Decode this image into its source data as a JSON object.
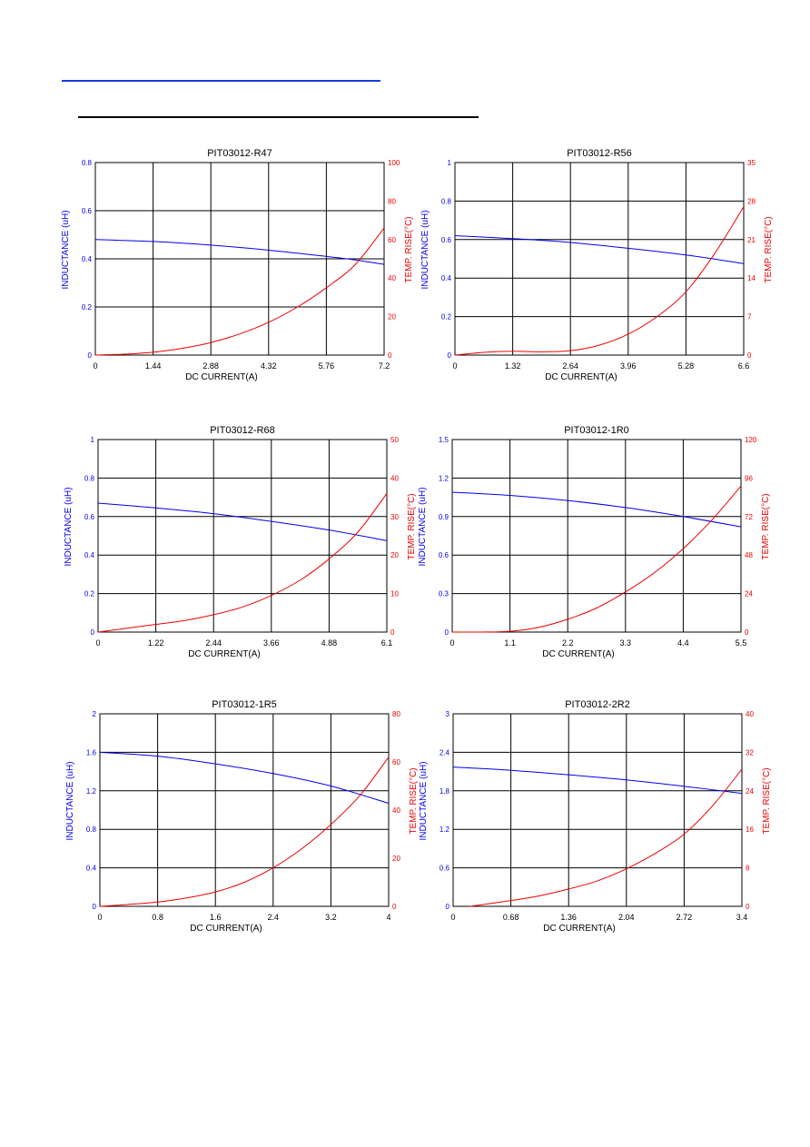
{
  "colors": {
    "inductance": "#0000ee",
    "temp_rise": "#ee0000",
    "grid": "#000000",
    "rule_blue": "#1a3adf"
  },
  "chart_data": [
    {
      "type": "line",
      "title": "PIT03012-R47",
      "xlabel": "DC CURRENT(A)",
      "ylabel_left": "INDUCTANCE (uH)",
      "ylabel_right": "TEMP. RISE(°C)",
      "x_ticks": [
        "0",
        "1.44",
        "2.88",
        "4.32",
        "5.76",
        "7.2"
      ],
      "left_ticks": [
        "0",
        "0.2",
        "0.4",
        "0.6",
        "0.8"
      ],
      "right_ticks": [
        "0",
        "20",
        "40",
        "60",
        "80",
        "100"
      ],
      "xlim": [
        0,
        7.2
      ],
      "ylim_left": [
        0,
        0.8
      ],
      "ylim_right": [
        0,
        100
      ],
      "grid": true,
      "series": [
        {
          "name": "INDUCTANCE (uH)",
          "axis": "left",
          "x": [
            0,
            1.44,
            2.88,
            4.32,
            5.76,
            6.5,
            7.2
          ],
          "y": [
            0.48,
            0.472,
            0.457,
            0.436,
            0.41,
            0.395,
            0.377
          ]
        },
        {
          "name": "TEMP. RISE(°C)",
          "axis": "right",
          "x": [
            0,
            0.72,
            1.44,
            2.16,
            2.88,
            3.6,
            4.32,
            5.04,
            5.76,
            6.48,
            7.2
          ],
          "y": [
            0,
            0.5,
            1.5,
            3.5,
            6.5,
            11,
            17,
            25,
            35,
            47,
            66
          ]
        }
      ]
    },
    {
      "type": "line",
      "title": "PIT03012-R56",
      "xlabel": "DC CURRENT(A)",
      "ylabel_left": "INDUCTANCE (uH)",
      "ylabel_right": "TEMP. RISE(°C)",
      "x_ticks": [
        "0",
        "1.32",
        "2.64",
        "3.96",
        "5.28",
        "6.6"
      ],
      "left_ticks": [
        "0",
        "0.2",
        "0.4",
        "0.6",
        "0.8",
        "1"
      ],
      "right_ticks": [
        "0",
        "7",
        "14",
        "21",
        "28",
        "35"
      ],
      "xlim": [
        0,
        6.6
      ],
      "ylim_left": [
        0,
        1.0
      ],
      "ylim_right": [
        0,
        35
      ],
      "grid": true,
      "series": [
        {
          "name": "INDUCTANCE (uH)",
          "axis": "left",
          "x": [
            0,
            1.32,
            2.64,
            3.96,
            5.28,
            6.6
          ],
          "y": [
            0.62,
            0.605,
            0.585,
            0.555,
            0.52,
            0.475
          ]
        },
        {
          "name": "TEMP. RISE(°C)",
          "axis": "right",
          "x": [
            0,
            0.66,
            1.32,
            1.98,
            2.64,
            3.3,
            3.96,
            4.62,
            5.28,
            5.94,
            6.6
          ],
          "y": [
            0,
            0.5,
            0.7,
            0.6,
            0.8,
            1.8,
            3.8,
            7,
            11.5,
            18.5,
            27
          ]
        }
      ]
    },
    {
      "type": "line",
      "title": "PIT03012-R68",
      "xlabel": "DC CURRENT(A)",
      "ylabel_left": "INDUCTANCE (uH)",
      "ylabel_right": "TEMP. RISE(°C)",
      "x_ticks": [
        "0",
        "1.22",
        "2.44",
        "3.66",
        "4.88",
        "6.1"
      ],
      "left_ticks": [
        "0",
        "0.2",
        "0.4",
        "0.6",
        "0.8",
        "1"
      ],
      "right_ticks": [
        "0",
        "10",
        "20",
        "30",
        "40",
        "50"
      ],
      "xlim": [
        0,
        6.1
      ],
      "ylim_left": [
        0,
        1.0
      ],
      "ylim_right": [
        0,
        50
      ],
      "grid": true,
      "series": [
        {
          "name": "INDUCTANCE (uH)",
          "axis": "left",
          "x": [
            0,
            1.22,
            2.44,
            3.66,
            4.88,
            6.1
          ],
          "y": [
            0.67,
            0.645,
            0.615,
            0.575,
            0.53,
            0.475
          ]
        },
        {
          "name": "TEMP. RISE(°C)",
          "axis": "right",
          "x": [
            0,
            0.61,
            1.22,
            1.83,
            2.44,
            3.05,
            3.66,
            4.27,
            4.88,
            5.49,
            6.1
          ],
          "y": [
            0,
            1,
            2,
            3,
            4.5,
            6.5,
            9.5,
            13.5,
            19,
            26,
            36
          ]
        }
      ]
    },
    {
      "type": "line",
      "title": "PIT03012-1R0",
      "xlabel": "DC CURRENT(A)",
      "ylabel_left": "INDUCTANCE (uH)",
      "ylabel_right": "TEMP. RISE(°C)",
      "x_ticks": [
        "0",
        "1.1",
        "2.2",
        "3.3",
        "4.4",
        "5.5"
      ],
      "left_ticks": [
        "0",
        "0.3",
        "0.6",
        "0.9",
        "1.2",
        "1.5"
      ],
      "right_ticks": [
        "0",
        "24",
        "48",
        "72",
        "96",
        "120"
      ],
      "xlim": [
        0,
        5.5
      ],
      "ylim_left": [
        0,
        1.5
      ],
      "ylim_right": [
        0,
        120
      ],
      "grid": true,
      "series": [
        {
          "name": "INDUCTANCE (uH)",
          "axis": "left",
          "x": [
            0,
            1.1,
            2.2,
            3.3,
            4.4,
            5.5
          ],
          "y": [
            1.09,
            1.065,
            1.025,
            0.97,
            0.9,
            0.82
          ]
        },
        {
          "name": "TEMP. RISE(°C)",
          "axis": "right",
          "x": [
            0,
            0.55,
            1.1,
            1.65,
            2.2,
            2.75,
            3.3,
            3.85,
            4.4,
            4.95,
            5.5
          ],
          "y": [
            0,
            0,
            0.5,
            3,
            8,
            15,
            25,
            37,
            52,
            70,
            91
          ]
        }
      ]
    },
    {
      "type": "line",
      "title": "PIT03012-1R5",
      "xlabel": "DC CURRENT(A)",
      "ylabel_left": "INDUCTANCE (uH)",
      "ylabel_right": "TEMP. RISE(°C)",
      "x_ticks": [
        "0",
        "0.8",
        "1.6",
        "2.4",
        "3.2",
        "4"
      ],
      "left_ticks": [
        "0",
        "0.4",
        "0.8",
        "1.2",
        "1.6",
        "2"
      ],
      "right_ticks": [
        "0",
        "20",
        "40",
        "60",
        "80"
      ],
      "xlim": [
        0,
        4
      ],
      "ylim_left": [
        0,
        2.0
      ],
      "ylim_right": [
        0,
        80
      ],
      "grid": true,
      "series": [
        {
          "name": "INDUCTANCE (uH)",
          "axis": "left",
          "x": [
            0,
            0.8,
            1.6,
            2.4,
            3.2,
            4
          ],
          "y": [
            1.6,
            1.56,
            1.48,
            1.38,
            1.25,
            1.07
          ]
        },
        {
          "name": "TEMP. RISE(°C)",
          "axis": "right",
          "x": [
            0,
            0.4,
            0.8,
            1.2,
            1.6,
            2.0,
            2.4,
            2.8,
            3.2,
            3.6,
            4.0
          ],
          "y": [
            0,
            0.8,
            1.8,
            3.5,
            6,
            10,
            16,
            24,
            34,
            46,
            62
          ]
        }
      ]
    },
    {
      "type": "line",
      "title": "PIT03012-2R2",
      "xlabel": "DC CURRENT(A)",
      "ylabel_left": "INDUCTANCE (uH)",
      "ylabel_right": "TEMP. RISE(°C)",
      "x_ticks": [
        "0",
        "0.68",
        "1.36",
        "2.04",
        "2.72",
        "3.4"
      ],
      "left_ticks": [
        "0",
        "0.6",
        "1.2",
        "1.8",
        "2.4",
        "3"
      ],
      "right_ticks": [
        "0",
        "8",
        "16",
        "24",
        "32",
        "40"
      ],
      "xlim": [
        0,
        3.4
      ],
      "ylim_left": [
        0,
        3.0
      ],
      "ylim_right": [
        0,
        40
      ],
      "grid": true,
      "series": [
        {
          "name": "INDUCTANCE (uH)",
          "axis": "left",
          "x": [
            0,
            0.68,
            1.36,
            2.04,
            2.72,
            3.4
          ],
          "y": [
            2.17,
            2.12,
            2.05,
            1.97,
            1.87,
            1.76
          ]
        },
        {
          "name": "TEMP. RISE(°C)",
          "axis": "right",
          "x": [
            0.2,
            0.68,
            1.02,
            1.36,
            1.7,
            2.04,
            2.38,
            2.72,
            3.06,
            3.4
          ],
          "y": [
            0,
            1.2,
            2.2,
            3.6,
            5.3,
            7.8,
            11,
            15,
            21,
            28.5
          ]
        }
      ]
    }
  ]
}
